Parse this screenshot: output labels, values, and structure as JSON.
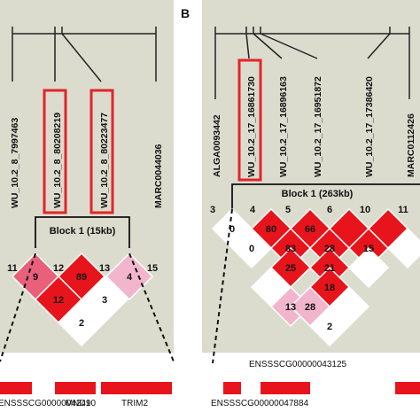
{
  "colors": {
    "panel_bg": "#dcdcce",
    "ld_strong": "#e8141c",
    "ld_medium": "#e8607a",
    "ld_light": "#f2b6cc",
    "ld_white": "#ffffff",
    "highlight_box": "#e1252b",
    "gene_bar": "#e8141c"
  },
  "panel_a": {
    "label": "",
    "snps": [
      "WU_10.2_8_7997463",
      "WU_10.2_8_80208219",
      "WU_10.2_8_80223477",
      "MARC0044036"
    ],
    "highlighted_snps": [
      "WU_10.2_8_80208219",
      "WU_10.2_8_80223477"
    ],
    "indices": [
      "11",
      "12",
      "13",
      "15"
    ],
    "block_label": "Block 1 (15kb)",
    "ld_cells": [
      {
        "value": "9",
        "level": "medium"
      },
      {
        "value": "89",
        "level": "strong"
      },
      {
        "value": "4",
        "level": "light"
      },
      {
        "value": "12",
        "level": "strong"
      },
      {
        "value": "3",
        "level": "white"
      },
      {
        "value": "2",
        "level": "white"
      }
    ],
    "genes": [
      "ENSSSCG00000042490",
      "MND1",
      "TRIM2"
    ]
  },
  "panel_b": {
    "label": "B",
    "snps": [
      "ALGA0093442",
      "WU_10.2_17_16861730",
      "WU_10.2_17_16896163",
      "WU_10.2_17_16951872",
      "WU_10.2_17_17386420",
      "MARC0112426"
    ],
    "highlighted_snps": [
      "WU_10.2_17_16861730"
    ],
    "indices": [
      "3",
      "4",
      "5",
      "6",
      "10",
      "11"
    ],
    "block_label": "Block 1 (263kb)",
    "ld_cells": [
      {
        "value": "0",
        "level": "white"
      },
      {
        "value": "80",
        "level": "strong"
      },
      {
        "value": "66",
        "level": "strong"
      },
      {
        "value": "",
        "level": "strong"
      },
      {
        "value": "",
        "level": "strong"
      },
      {
        "value": "0",
        "level": "white"
      },
      {
        "value": "83",
        "level": "strong"
      },
      {
        "value": "28",
        "level": "strong"
      },
      {
        "value": "15",
        "level": "strong"
      },
      {
        "value": "",
        "level": "white"
      },
      {
        "value": "25",
        "level": "strong"
      },
      {
        "value": "21",
        "level": "strong"
      },
      {
        "value": "",
        "level": "white"
      },
      {
        "value": "13",
        "level": "light"
      },
      {
        "value": "18",
        "level": "strong"
      },
      {
        "value": "",
        "level": "white"
      },
      {
        "value": "28",
        "level": "light"
      },
      {
        "value": "",
        "level": "white"
      },
      {
        "value": "2",
        "level": "white"
      }
    ],
    "genes": [
      "ENSSSCG00000043125",
      "ENSSSCG00000047884"
    ]
  }
}
